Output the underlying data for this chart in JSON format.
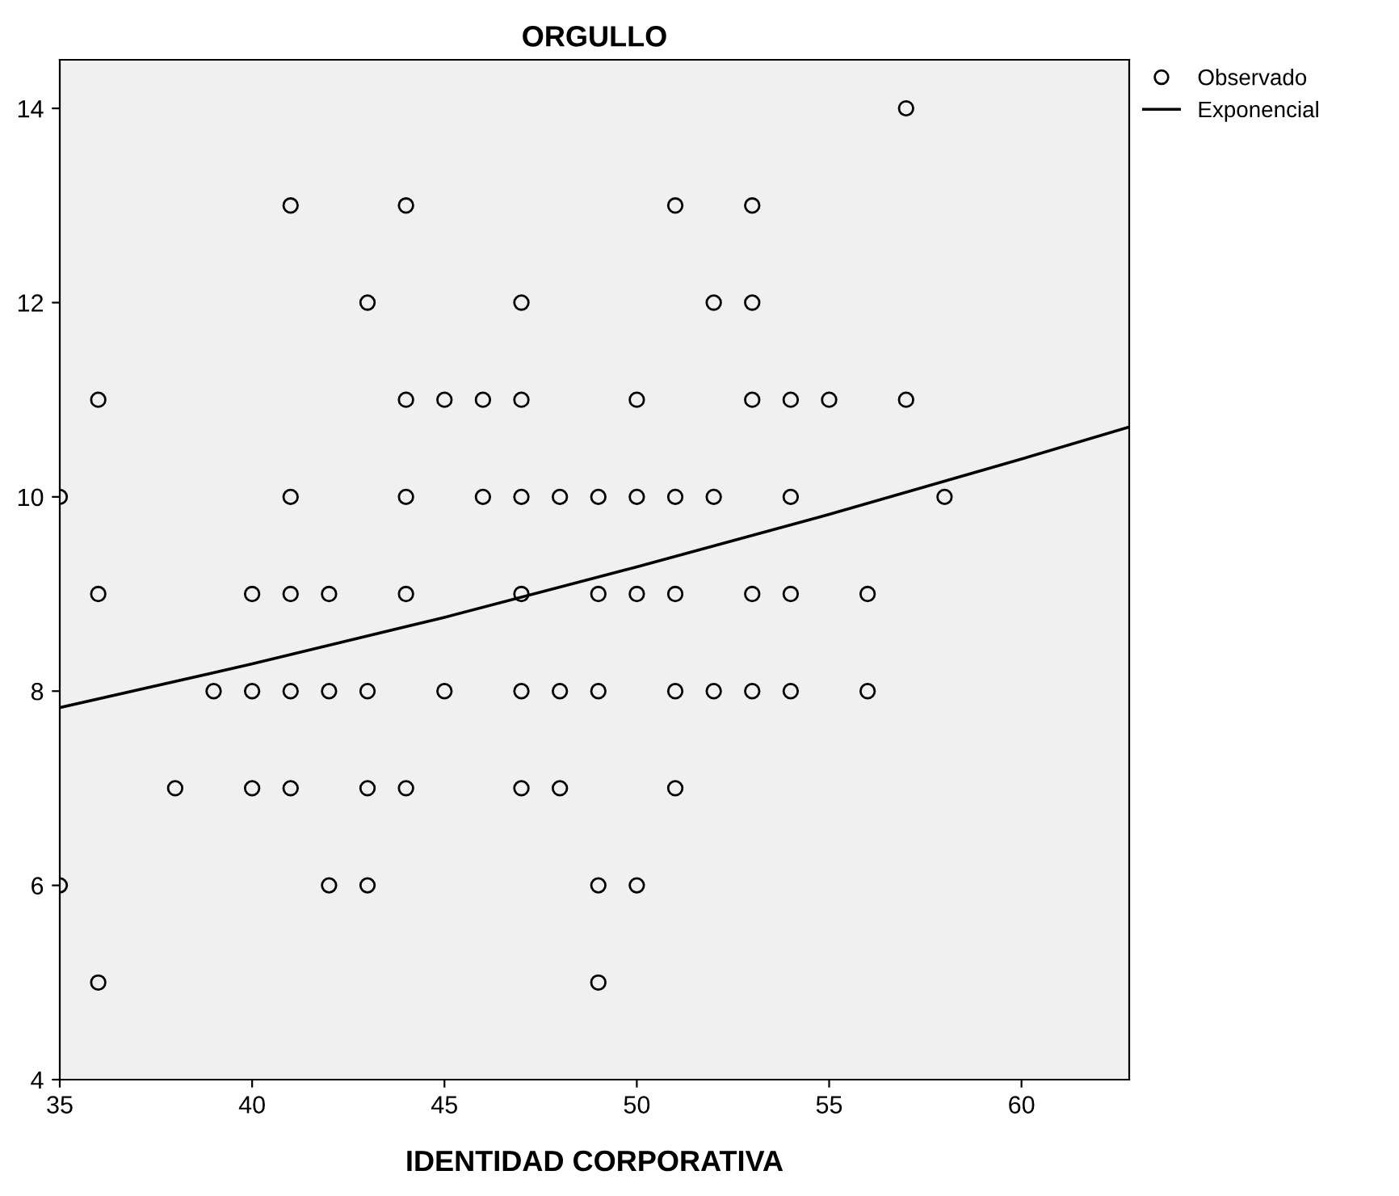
{
  "chart_data": {
    "type": "scatter",
    "title": "ORGULLO",
    "xlabel": "IDENTIDAD CORPORATIVA",
    "xlim": [
      35,
      62.8
    ],
    "ylim": [
      4,
      14.5
    ],
    "xticks": [
      35,
      40,
      45,
      50,
      55,
      60
    ],
    "yticks": [
      4,
      6,
      8,
      10,
      12,
      14
    ],
    "grid": false,
    "legend": "top right",
    "marker": "circle",
    "series": [
      {
        "name": "Observado",
        "color": "#000000",
        "x": [
          57,
          41,
          44,
          51,
          53,
          43,
          47,
          52,
          53,
          36,
          44,
          45,
          46,
          47,
          50,
          53,
          54,
          55,
          57,
          35,
          41,
          44,
          46,
          47,
          48,
          49,
          50,
          51,
          52,
          54,
          58,
          36,
          40,
          41,
          42,
          44,
          47,
          49,
          50,
          51,
          53,
          54,
          56,
          39,
          40,
          41,
          42,
          43,
          45,
          47,
          48,
          49,
          51,
          52,
          53,
          54,
          56,
          38,
          40,
          41,
          43,
          44,
          47,
          48,
          51,
          35,
          42,
          43,
          49,
          50,
          36,
          49
        ],
        "values": [
          14,
          13,
          13,
          13,
          13,
          12,
          12,
          12,
          12,
          11,
          11,
          11,
          11,
          11,
          11,
          11,
          11,
          11,
          11,
          10,
          10,
          10,
          10,
          10,
          10,
          10,
          10,
          10,
          10,
          10,
          10,
          9,
          9,
          9,
          9,
          9,
          9,
          9,
          9,
          9,
          9,
          9,
          9,
          8,
          8,
          8,
          8,
          8,
          8,
          8,
          8,
          8,
          8,
          8,
          8,
          8,
          8,
          7,
          7,
          7,
          7,
          7,
          7,
          7,
          7,
          6,
          6,
          6,
          6,
          6,
          5,
          5
        ]
      },
      {
        "name": "Exponencial",
        "type": "line",
        "color": "#000000",
        "marker": "none",
        "x": [
          35,
          40,
          45,
          50,
          55,
          60,
          62.8
        ],
        "values": [
          7.83,
          8.28,
          8.76,
          9.28,
          9.82,
          10.39,
          10.72
        ]
      }
    ]
  }
}
